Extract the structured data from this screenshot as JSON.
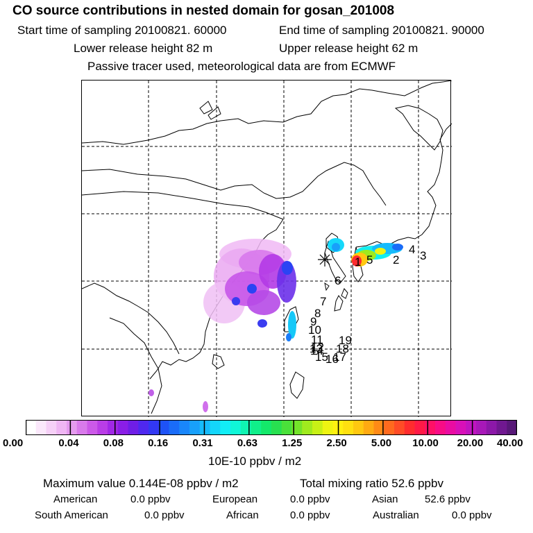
{
  "header": {
    "title": "CO  source contributions in nested domain for gosan_201008",
    "start_time": "Start time of sampling 20100821. 60000",
    "end_time": "End time of sampling 20100821. 90000",
    "lower_release": "Lower release height   82 m",
    "upper_release": "Upper release height   62 m",
    "tracer_note": "Passive tracer used, meteorological data are from ECMWF"
  },
  "map": {
    "receptor_marker": "asterisk",
    "trajectory_labels": [
      "1",
      "5",
      "2",
      "4",
      "3",
      "6",
      "7",
      "8",
      "9",
      "10",
      "11",
      "12",
      "13",
      "14",
      "15",
      "16",
      "17",
      "18",
      "19"
    ]
  },
  "colorbar": {
    "ticks": [
      "0.00",
      "0.04",
      "0.08",
      "0.16",
      "0.31",
      "0.63",
      "1.25",
      "2.50",
      "5.00",
      "10.00",
      "20.00",
      "40.00"
    ],
    "units": "10E-10 ppbv / m2",
    "colors": [
      "#ffffff",
      "#fbe8fb",
      "#f6d0f7",
      "#efb6f3",
      "#e59bef",
      "#d97aeb",
      "#cc59e8",
      "#b93de6",
      "#a128e6",
      "#8a1ee6",
      "#6f1ee6",
      "#4f28ef",
      "#3238f3",
      "#1e52f6",
      "#1a6cf8",
      "#1986fa",
      "#18a0fb",
      "#16bbfc",
      "#14d6fb",
      "#12eef6",
      "#10f7d8",
      "#10f4b2",
      "#10ef8a",
      "#14e86a",
      "#28e050",
      "#4ae03a",
      "#74e42a",
      "#a0ea1e",
      "#c8f016",
      "#eef412",
      "#fff010",
      "#ffe010",
      "#ffc810",
      "#ffaa12",
      "#ff8a16",
      "#ff6a1e",
      "#ff4c26",
      "#ff2c2e",
      "#ff1a46",
      "#ff1066",
      "#f80c86",
      "#ea0ca2",
      "#d810b8",
      "#c014c0",
      "#a818b8",
      "#8c18a8",
      "#701890",
      "#581878"
    ]
  },
  "stats": {
    "max_value": "Maximum value  0.144E-08 ppbv / m2",
    "total_mixing": "Total mixing ratio       52.6 ppbv",
    "regions": [
      {
        "name": "American",
        "value": "0.0 ppbv"
      },
      {
        "name": "European",
        "value": "0.0 ppbv"
      },
      {
        "name": "Asian",
        "value": "52.6 ppbv"
      },
      {
        "name": "South American",
        "value": "0.0 ppbv"
      },
      {
        "name": "African",
        "value": "0.0 ppbv"
      },
      {
        "name": "Australian",
        "value": "0.0 ppbv"
      }
    ]
  }
}
